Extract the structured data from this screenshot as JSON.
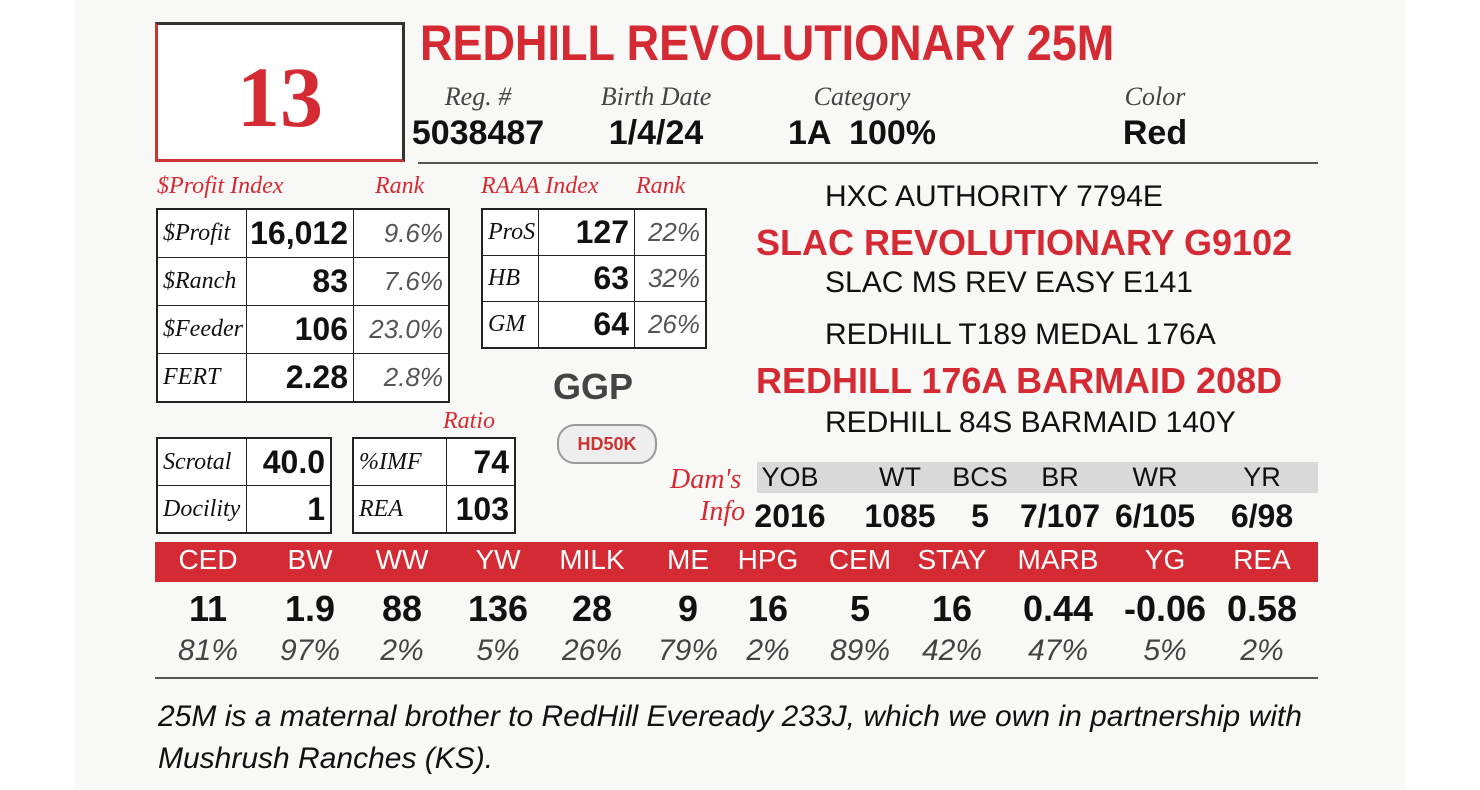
{
  "lot": "13",
  "name": "REDHILL REVOLUTIONARY 25M",
  "info": {
    "labels": [
      "Reg. #",
      "Birth Date",
      "Category",
      "Color"
    ],
    "values": [
      "5038487",
      "1/4/24",
      "1A  100%",
      "Red"
    ]
  },
  "profit": {
    "title": "$Profit Index",
    "rank_title": "Rank",
    "rows": [
      [
        "$Profit",
        "16,012",
        "9.6%"
      ],
      [
        "$Ranch",
        "83",
        "7.6%"
      ],
      [
        "$Feeder",
        "106",
        "23.0%"
      ],
      [
        "FERT",
        "2.28",
        "2.8%"
      ]
    ]
  },
  "raaa": {
    "title": "RAAA Index",
    "rank_title": "Rank",
    "rows": [
      [
        "ProS",
        "127",
        "22%"
      ],
      [
        "HB",
        "63",
        "32%"
      ],
      [
        "GM",
        "64",
        "26%"
      ]
    ]
  },
  "logos": [
    "GGP",
    "HD50K"
  ],
  "traits": {
    "rows": [
      [
        "Scrotal",
        "40.0"
      ],
      [
        "Docility",
        "1"
      ]
    ]
  },
  "ratio": {
    "title": "Ratio",
    "rows": [
      [
        "%IMF",
        "74"
      ],
      [
        "REA",
        "103"
      ]
    ]
  },
  "pedigree": [
    "HXC AUTHORITY 7794E",
    "SLAC REVOLUTIONARY G9102",
    "SLAC MS REV EASY E141",
    "REDHILL T189 MEDAL 176A",
    "REDHILL 176A BARMAID 208D",
    "REDHILL 84S BARMAID 140Y"
  ],
  "dam_info": {
    "label": [
      "Dam's",
      "Info"
    ],
    "headers": [
      "YOB",
      "WT",
      "BCS",
      "BR",
      "WR",
      "YR"
    ],
    "values": [
      "2016",
      "1085",
      "5",
      "7/107",
      "6/105",
      "6/98"
    ]
  },
  "epd": {
    "headers": [
      "CED",
      "BW",
      "WW",
      "YW",
      "MILK",
      "ME",
      "HPG",
      "CEM",
      "STAY",
      "MARB",
      "YG",
      "REA"
    ],
    "values": [
      "11",
      "1.9",
      "88",
      "136",
      "28",
      "9",
      "16",
      "5",
      "16",
      "0.44",
      "-0.06",
      "0.58"
    ],
    "percentiles": [
      "81%",
      "97%",
      "2%",
      "5%",
      "26%",
      "79%",
      "2%",
      "89%",
      "42%",
      "47%",
      "5%",
      "2%"
    ]
  },
  "note": "25M is a maternal brother to RedHill Eveready 233J, which we own in partnership with Mushrush Ranches (KS)."
}
